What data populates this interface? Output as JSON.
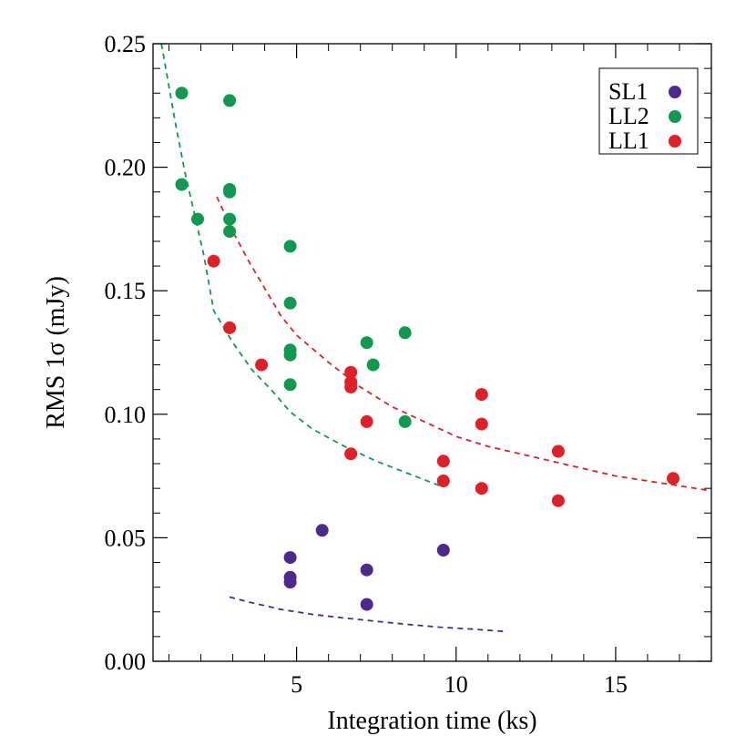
{
  "chart_data": {
    "type": "scatter",
    "xlabel": "Integration time (ks)",
    "ylabel": "RMS 1σ (mJy)",
    "xlim": [
      0.5,
      18
    ],
    "ylim": [
      0,
      0.25
    ],
    "x_ticks": [
      5,
      10,
      15
    ],
    "x_tick_labels": [
      "5",
      "10",
      "15"
    ],
    "y_ticks": [
      0.0,
      0.05,
      0.1,
      0.15,
      0.2,
      0.25
    ],
    "y_tick_labels": [
      "0.00",
      "0.05",
      "0.10",
      "0.15",
      "0.20",
      "0.25"
    ],
    "legend_position": "top-right",
    "grid": false,
    "series": [
      {
        "name": "SL1",
        "color": "#4b2a8c",
        "points": [
          [
            4.8,
            0.042
          ],
          [
            4.8,
            0.034
          ],
          [
            4.8,
            0.032
          ],
          [
            5.8,
            0.053
          ],
          [
            7.2,
            0.037
          ],
          [
            7.2,
            0.023
          ],
          [
            9.6,
            0.045
          ]
        ],
        "fit": [
          [
            2.9,
            0.026
          ],
          [
            3.5,
            0.024
          ],
          [
            4.5,
            0.021
          ],
          [
            5.5,
            0.019
          ],
          [
            6.5,
            0.0175
          ],
          [
            7.5,
            0.0162
          ],
          [
            8.5,
            0.0149
          ],
          [
            9.5,
            0.0138
          ],
          [
            10.5,
            0.013
          ],
          [
            11.6,
            0.012
          ]
        ]
      },
      {
        "name": "LL2",
        "color": "#109a4f",
        "points": [
          [
            1.4,
            0.23
          ],
          [
            2.9,
            0.227
          ],
          [
            1.4,
            0.193
          ],
          [
            2.9,
            0.191
          ],
          [
            2.9,
            0.19
          ],
          [
            1.9,
            0.179
          ],
          [
            2.9,
            0.179
          ],
          [
            2.9,
            0.174
          ],
          [
            4.8,
            0.168
          ],
          [
            4.8,
            0.145
          ],
          [
            8.4,
            0.133
          ],
          [
            7.2,
            0.129
          ],
          [
            4.8,
            0.126
          ],
          [
            4.8,
            0.124
          ],
          [
            7.4,
            0.12
          ],
          [
            4.8,
            0.112
          ],
          [
            8.4,
            0.097
          ]
        ],
        "fit": [
          [
            0.65,
            0.258
          ],
          [
            0.9,
            0.24
          ],
          [
            1.2,
            0.218
          ],
          [
            1.5,
            0.198
          ],
          [
            1.8,
            0.181
          ],
          [
            2.1,
            0.164
          ],
          [
            2.4,
            0.142
          ],
          [
            3.0,
            0.129
          ],
          [
            3.6,
            0.118
          ],
          [
            4.2,
            0.11
          ],
          [
            4.8,
            0.101
          ],
          [
            5.5,
            0.094
          ],
          [
            6.5,
            0.087
          ],
          [
            7.5,
            0.081
          ],
          [
            8.5,
            0.076
          ],
          [
            9.5,
            0.071
          ]
        ]
      },
      {
        "name": "LL1",
        "color": "#e02027",
        "points": [
          [
            2.4,
            0.162
          ],
          [
            2.9,
            0.135
          ],
          [
            3.9,
            0.12
          ],
          [
            6.7,
            0.117
          ],
          [
            6.7,
            0.113
          ],
          [
            6.7,
            0.111
          ],
          [
            10.8,
            0.108
          ],
          [
            7.2,
            0.097
          ],
          [
            10.8,
            0.096
          ],
          [
            13.2,
            0.085
          ],
          [
            6.7,
            0.084
          ],
          [
            9.6,
            0.081
          ],
          [
            16.8,
            0.074
          ],
          [
            9.6,
            0.073
          ],
          [
            10.8,
            0.07
          ],
          [
            13.2,
            0.065
          ]
        ],
        "fit": [
          [
            2.5,
            0.188
          ],
          [
            3.0,
            0.174
          ],
          [
            3.5,
            0.162
          ],
          [
            4.0,
            0.151
          ],
          [
            4.5,
            0.14
          ],
          [
            5.0,
            0.132
          ],
          [
            6.0,
            0.121
          ],
          [
            7.0,
            0.111
          ],
          [
            8.0,
            0.103
          ],
          [
            9.0,
            0.097
          ],
          [
            10.0,
            0.091
          ],
          [
            11.0,
            0.087
          ],
          [
            12.0,
            0.084
          ],
          [
            13.0,
            0.081
          ],
          [
            14.0,
            0.078
          ],
          [
            15.0,
            0.075
          ],
          [
            16.0,
            0.073
          ],
          [
            17.0,
            0.071
          ],
          [
            18.0,
            0.069
          ]
        ]
      }
    ]
  }
}
